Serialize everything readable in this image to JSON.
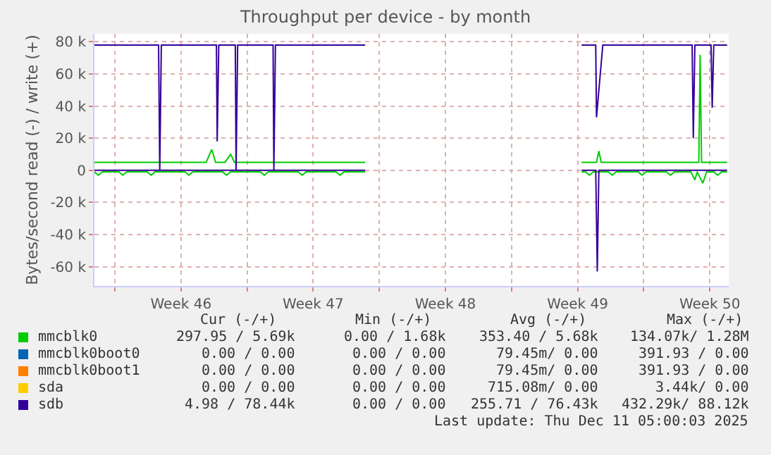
{
  "chart_data": {
    "type": "line",
    "title": "Throughput per device - by month",
    "ylabel": "Bytes/second read (-) / write (+)",
    "xlim": [
      "2025-11-08T22:00",
      "2025-12-12T12:00"
    ],
    "xticks": [
      {
        "value": "2025-11-10",
        "label": null
      },
      {
        "value": "2025-11-13T12:00",
        "label": "Week 46"
      },
      {
        "value": "2025-11-17",
        "label": null
      },
      {
        "value": "2025-11-20T12:00",
        "label": "Week 47"
      },
      {
        "value": "2025-11-24",
        "label": null
      },
      {
        "value": "2025-11-27T12:00",
        "label": "Week 48"
      },
      {
        "value": "2025-12-01",
        "label": null
      },
      {
        "value": "2025-12-04T12:00",
        "label": "Week 49"
      },
      {
        "value": "2025-12-08",
        "label": null
      },
      {
        "value": "2025-12-11T12:00",
        "label": "Week 50"
      }
    ],
    "ylim": [
      -72000,
      85000
    ],
    "yticks": [
      {
        "value": -60000,
        "label": "-60 k"
      },
      {
        "value": -40000,
        "label": "-40 k"
      },
      {
        "value": -20000,
        "label": "-20 k"
      },
      0,
      {
        "value": 20000,
        "label": "20 k"
      },
      {
        "value": 40000,
        "label": "40 k"
      },
      {
        "value": 60000,
        "label": "60 k"
      },
      {
        "value": 80000,
        "label": "80 k"
      }
    ],
    "grid": true,
    "legend": "bottom",
    "series": [
      {
        "name": "mmcblk0",
        "color": "#00cc00",
        "x": [
          "2025-11-08T22:00",
          "2025-11-14T20:00",
          "2025-11-15T03:00",
          "2025-11-15T08:00",
          "2025-11-15T20:00",
          "2025-11-16T03:00",
          "2025-11-16T08:00",
          "2025-11-23T06:00",
          "2025-11-23T08:00",
          "2025-12-04T17:00",
          "2025-12-05T12:00",
          "2025-12-05T15:00",
          "2025-12-05T18:00",
          "2025-12-10T22:00",
          "2025-12-10T23:40",
          "2025-12-11T01:30",
          "2025-12-12T10:00"
        ],
        "values": [
          5000,
          5000,
          13000,
          5000,
          5000,
          10000,
          5000,
          5000,
          null,
          5000,
          5000,
          12000,
          5000,
          5000,
          72000,
          5000,
          5000
        ]
      },
      {
        "color": "#00cc00",
        "x": [
          "2025-11-08T22:00",
          "2025-11-09T03:00",
          "2025-11-09T08:00",
          "2025-11-10T05:00",
          "2025-11-10T10:00",
          "2025-11-10T15:00",
          "2025-11-11T17:00",
          "2025-11-11T22:00",
          "2025-11-12T03:00",
          "2025-11-13T17:00",
          "2025-11-13T22:00",
          "2025-11-14T03:00",
          "2025-11-15T17:00",
          "2025-11-15T22:00",
          "2025-11-16T03:00",
          "2025-11-17T17:00",
          "2025-11-17T22:00",
          "2025-11-18T03:00",
          "2025-11-19T17:00",
          "2025-11-19T22:00",
          "2025-11-20T03:00",
          "2025-11-21T17:00",
          "2025-11-21T22:00",
          "2025-11-22T03:00",
          "2025-11-23T06:00",
          "2025-11-23T08:00",
          "2025-12-04T17:00",
          "2025-12-04T22:00",
          "2025-12-05T03:00",
          "2025-12-05T08:00",
          "2025-12-06T03:00",
          "2025-12-06T08:00",
          "2025-12-06T13:00",
          "2025-12-07T17:00",
          "2025-12-07T22:00",
          "2025-12-08T03:00",
          "2025-12-09T05:00",
          "2025-12-09T10:00",
          "2025-12-09T15:00",
          "2025-12-10T12:00",
          "2025-12-10T17:00",
          "2025-12-10T20:00",
          "2025-12-11T03:00",
          "2025-12-11T08:00",
          "2025-12-11T17:00",
          "2025-12-11T22:00",
          "2025-12-12T03:00",
          "2025-12-12T10:00"
        ],
        "values": [
          -1000,
          -3000,
          -1000,
          -1000,
          -3000,
          -1000,
          -1000,
          -3000,
          -1000,
          -1000,
          -3000,
          -1000,
          -1000,
          -3000,
          -1000,
          -1000,
          -3000,
          -1000,
          -1000,
          -3000,
          -1000,
          -1000,
          -3000,
          -1000,
          -1000,
          null,
          -1000,
          -1000,
          -3000,
          -1000,
          -1000,
          -3000,
          -1000,
          -1000,
          -3000,
          -1000,
          -1000,
          -3000,
          -1000,
          -1000,
          -6000,
          -1000,
          -8000,
          -1000,
          -1000,
          -3000,
          -1000,
          -1000
        ]
      },
      {
        "name": "mmcblk0boot0",
        "color": "#0066b3"
      },
      {
        "name": "mmcblk0boot1",
        "color": "#ff8000"
      },
      {
        "name": "sda",
        "color": "#ffcc00"
      },
      {
        "name": "sdb",
        "color": "#330099",
        "x": [
          "2025-11-08T22:00",
          "2025-11-12T07:30",
          "2025-11-12T09:00",
          "2025-11-12T11:00",
          "2025-11-15T09:00",
          "2025-11-15T10:00",
          "2025-11-15T12:00",
          "2025-11-16T09:00",
          "2025-11-16T10:00",
          "2025-11-16T12:00",
          "2025-11-18T09:00",
          "2025-11-18T10:00",
          "2025-11-18T12:00",
          "2025-11-23T06:00",
          "2025-11-23T08:00",
          "2025-12-04T17:00",
          "2025-12-05T11:00",
          "2025-12-05T12:00",
          "2025-12-05T20:00",
          "2025-12-10T13:30",
          "2025-12-10T15:00",
          "2025-12-10T17:00",
          "2025-12-11T13:30",
          "2025-12-11T15:00",
          "2025-12-11T17:00",
          "2025-12-12T10:00"
        ],
        "values": [
          78000,
          78000,
          0,
          78000,
          78000,
          18000,
          78000,
          78000,
          0,
          78000,
          78000,
          0,
          78000,
          78000,
          null,
          78000,
          78000,
          33000,
          78000,
          78000,
          20000,
          78000,
          78000,
          39000,
          78000,
          78000
        ]
      },
      {
        "color": "#330099",
        "x": [
          "2025-11-08T22:00",
          "2025-11-23T06:00",
          "2025-11-23T08:00",
          "2025-12-04T17:00",
          "2025-12-05T11:00",
          "2025-12-05T13:00",
          "2025-12-05T15:00",
          "2025-12-12T10:00"
        ],
        "values": [
          0,
          0,
          null,
          0,
          0,
          -63000,
          0,
          0
        ]
      }
    ],
    "annotations": [
      "Cur (-/+)",
      "Min (-/+)",
      "Avg (-/+)",
      "Max (-/+)",
      "297.95 / 5.69k",
      "0.00 / 1.68k",
      "353.40 / 5.68k",
      "134.07k/ 1.28M",
      "0.00 / 0.00",
      "0.00 / 0.00",
      "79.45m/ 0.00",
      "391.93 / 0.00",
      "0.00 / 0.00",
      "0.00 / 0.00",
      "79.45m/ 0.00",
      "391.93 / 0.00",
      "0.00 / 0.00",
      "0.00 / 0.00",
      "715.08m/ 0.00",
      "3.44k/ 0.00",
      "4.98 / 78.44k",
      "0.00 / 0.00",
      "255.71 / 76.43k",
      "432.29k/ 88.12k",
      "Last update: Thu Dec 11 05:00:03 2025"
    ]
  }
}
